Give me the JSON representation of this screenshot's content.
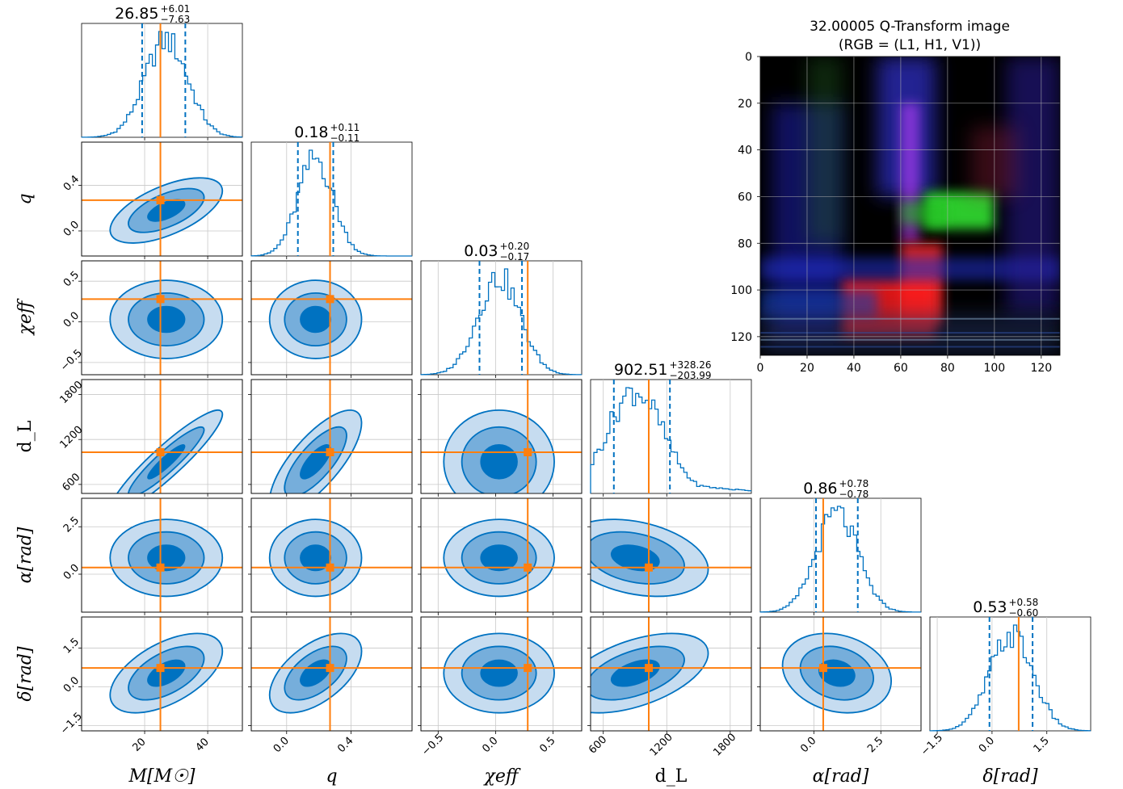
{
  "colors": {
    "contour": "#0072c1",
    "contour_fill_1": "#c6dcf0",
    "contour_fill_2": "#76aedb",
    "contour_fill_3": "#0072c1",
    "truth": "#ff7f0e",
    "grid": "#c8c8c8",
    "axis": "#000000"
  },
  "chart_data": {
    "type": "corner",
    "parameters": [
      {
        "key": "mc",
        "label": "M[M☉]",
        "title_value": "26.85",
        "title_plus": "+6.01",
        "title_minus": "−7.63",
        "range": [
          0,
          51
        ],
        "ticks": [
          20,
          40
        ],
        "tick_labels": [
          "20",
          "40"
        ],
        "truth": 25.0,
        "q16": 19.2,
        "q84": 32.9,
        "median": 26.85
      },
      {
        "key": "q",
        "label": "q",
        "title_value": "0.18",
        "title_plus": "+0.11",
        "title_minus": "−0.11",
        "range": [
          -0.22,
          0.78
        ],
        "ticks": [
          0.0,
          0.4
        ],
        "tick_labels": [
          "0.0",
          "0.4"
        ],
        "truth": 0.27,
        "q16": 0.07,
        "q84": 0.29,
        "median": 0.18
      },
      {
        "key": "chi",
        "label": "χeff",
        "title_value": "0.03",
        "title_plus": "+0.20",
        "title_minus": "−0.17",
        "range": [
          -0.65,
          0.75
        ],
        "ticks": [
          -0.5,
          0.0,
          0.5
        ],
        "tick_labels": [
          "−0.5",
          "0.0",
          "0.5"
        ],
        "truth": 0.28,
        "q16": -0.14,
        "q84": 0.23,
        "median": 0.03
      },
      {
        "key": "dl",
        "label": "d_L",
        "title_value": "902.51",
        "title_plus": "+328.26",
        "title_minus": "−203.99",
        "range": [
          480,
          2000
        ],
        "ticks": [
          600,
          1200,
          1800
        ],
        "tick_labels": [
          "600",
          "1200",
          "1800"
        ],
        "truth": 1030,
        "q16": 700,
        "q84": 1230,
        "median": 902.51
      },
      {
        "key": "ra",
        "label": "α[rad]",
        "title_value": "0.86",
        "title_plus": "+0.78",
        "title_minus": "−0.78",
        "range": [
          -2.0,
          4.0
        ],
        "ticks": [
          0.0,
          2.5
        ],
        "tick_labels": [
          "0.0",
          "2.5"
        ],
        "truth": 0.35,
        "q16": 0.08,
        "q84": 1.64,
        "median": 0.86
      },
      {
        "key": "dec",
        "label": "δ[rad]",
        "title_value": "0.53",
        "title_plus": "+0.58",
        "title_minus": "−0.60",
        "range": [
          -1.7,
          2.7
        ],
        "ticks": [
          -1.5,
          0.0,
          1.5
        ],
        "tick_labels": [
          "−1.5",
          "0.0",
          "1.5"
        ],
        "truth": 0.73,
        "q16": -0.07,
        "q84": 1.11,
        "median": 0.53
      }
    ],
    "correlations": {
      "q|mc": 0.6,
      "dl|mc": 0.92,
      "dl|q": 0.75,
      "dec|mc": 0.55,
      "dec|q": 0.55,
      "dec|dl": 0.5,
      "ra|dl": -0.3,
      "dec|ra": -0.2
    },
    "image": {
      "title_line1": "32.00005 Q-Transform image",
      "title_line2": "(RGB = (L1, H1, V1))",
      "x_ticks": [
        0,
        20,
        40,
        60,
        80,
        100,
        120
      ],
      "x_tick_labels": [
        "0",
        "20",
        "40",
        "60",
        "80",
        "100",
        "120"
      ],
      "y_ticks": [
        0,
        20,
        40,
        60,
        80,
        100,
        120
      ],
      "y_tick_labels": [
        "0",
        "20",
        "40",
        "60",
        "80",
        "100",
        "120"
      ],
      "extent": [
        0,
        128
      ]
    }
  }
}
